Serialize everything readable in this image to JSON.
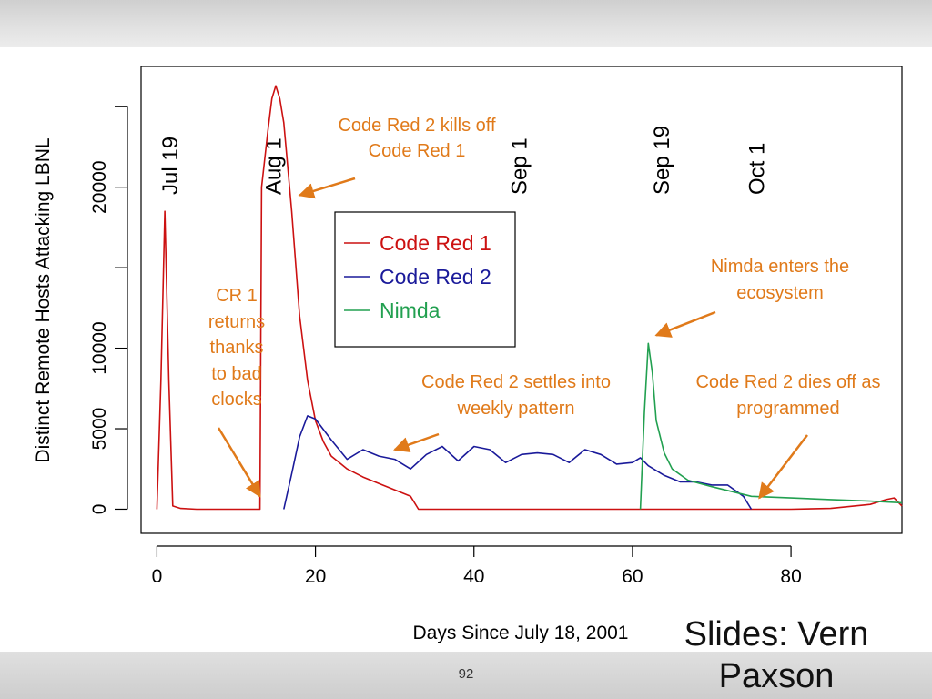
{
  "slide": {
    "credit_line1": "Slides: Vern",
    "credit_line2": "Paxson",
    "page_number": "92"
  },
  "chart_data": {
    "type": "line",
    "title": "",
    "xlabel": "Days Since July 18, 2001",
    "ylabel": "Distinct Remote Hosts Attacking LBNL",
    "xlim": [
      -2,
      94
    ],
    "ylim": [
      -1500,
      27500
    ],
    "x_ticks": [
      0,
      20,
      40,
      60,
      80
    ],
    "x_tick_labels": [
      "0",
      "20",
      "40",
      "60",
      "80"
    ],
    "y_ticks": [
      0,
      5000,
      10000,
      15000,
      20000,
      25000
    ],
    "y_tick_labels": [
      "0",
      "5000",
      "10000",
      "",
      "20000",
      ""
    ],
    "date_markers": [
      {
        "label": "Jul 19",
        "day": 1
      },
      {
        "label": "Aug 1",
        "day": 14
      },
      {
        "label": "Sep 1",
        "day": 45
      },
      {
        "label": "Sep 19",
        "day": 63
      },
      {
        "label": "Oct 1",
        "day": 75
      }
    ],
    "series": [
      {
        "name": "Code Red 1",
        "color": "#cc1111",
        "x": [
          0,
          0.5,
          1,
          1.5,
          2,
          3,
          5,
          8,
          11,
          13,
          13.2,
          14,
          14.5,
          15,
          15.5,
          16,
          17,
          18,
          19,
          20,
          21,
          22,
          24,
          26,
          28,
          30,
          32,
          33,
          35,
          40,
          50,
          60,
          70,
          80,
          85,
          90,
          92,
          93,
          94
        ],
        "y": [
          0,
          8000,
          18500,
          8000,
          200,
          50,
          0,
          0,
          0,
          0,
          20000,
          23500,
          25500,
          26300,
          25500,
          24000,
          18500,
          12000,
          8000,
          5500,
          4200,
          3300,
          2500,
          2000,
          1600,
          1200,
          800,
          0,
          0,
          0,
          0,
          0,
          0,
          0,
          50,
          300,
          600,
          700,
          200
        ]
      },
      {
        "name": "Code Red 2",
        "color": "#1a1a9a",
        "x": [
          16,
          17,
          18,
          19,
          20,
          22,
          24,
          26,
          28,
          30,
          32,
          34,
          36,
          38,
          40,
          42,
          44,
          46,
          48,
          50,
          52,
          54,
          56,
          58,
          60,
          61,
          62,
          64,
          66,
          68,
          70,
          72,
          74,
          75
        ],
        "y": [
          0,
          2200,
          4500,
          5800,
          5600,
          4300,
          3100,
          3700,
          3300,
          3100,
          2500,
          3400,
          3900,
          3000,
          3900,
          3700,
          2900,
          3400,
          3500,
          3400,
          2900,
          3700,
          3400,
          2800,
          2900,
          3200,
          2700,
          2100,
          1700,
          1700,
          1500,
          1500,
          800,
          0
        ]
      },
      {
        "name": "Nimda",
        "color": "#22a050",
        "x": [
          61,
          61.5,
          62,
          62.5,
          63,
          64,
          65,
          67,
          70,
          75,
          80,
          85,
          90,
          94
        ],
        "y": [
          0,
          6000,
          10300,
          8500,
          5500,
          3500,
          2500,
          1800,
          1400,
          800,
          700,
          600,
          500,
          400
        ]
      }
    ],
    "legend": {
      "position": "upper-center",
      "entries": [
        "Code Red 1",
        "Code Red 2",
        "Nimda"
      ]
    },
    "annotations": [
      {
        "id": "cr2-kills-cr1",
        "lines": [
          "Code Red 2 kills off",
          "Code Red 1"
        ],
        "target_x": 18,
        "target_y": 19500
      },
      {
        "id": "cr1-returns",
        "lines": [
          "CR 1",
          "returns",
          "thanks",
          "to bad",
          "clocks"
        ],
        "target_x": 13,
        "target_y": 800
      },
      {
        "id": "cr2-weekly",
        "lines": [
          "Code Red 2 settles into",
          "weekly pattern"
        ],
        "target_x": 30,
        "target_y": 3700
      },
      {
        "id": "nimda-enters",
        "lines": [
          "Nimda enters the",
          "ecosystem"
        ],
        "target_x": 63,
        "target_y": 10800
      },
      {
        "id": "cr2-dies",
        "lines": [
          "Code Red 2 dies off as",
          "programmed"
        ],
        "target_x": 76,
        "target_y": 700
      }
    ],
    "colors": {
      "annotation": "#e07a1a",
      "axis": "#000000"
    }
  }
}
